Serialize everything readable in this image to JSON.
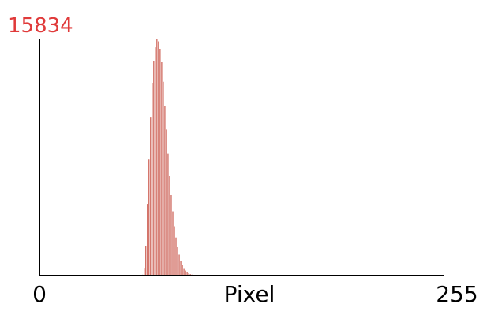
{
  "chart_data": {
    "type": "bar",
    "xlabel": "Pixel",
    "x_tick_labels": [
      "0",
      "255"
    ],
    "xlim": [
      0,
      255
    ],
    "ylim": [
      0,
      15834
    ],
    "y_max_label": "15834",
    "grid": false,
    "legend": "none",
    "bar_color": "#c0392b",
    "label_color": "#e03a3a",
    "axis_color": "#000000",
    "series": [
      {
        "x": [
          65,
          66,
          67,
          68,
          69,
          70,
          71,
          72,
          73,
          74,
          75,
          76,
          77,
          78,
          79,
          80,
          81,
          82,
          83,
          84,
          85,
          86,
          87,
          88,
          89,
          90,
          91,
          92,
          93,
          94,
          95,
          96,
          97,
          98,
          99,
          100,
          101,
          102,
          103
        ],
        "values": [
          60,
          520,
          2000,
          4800,
          7800,
          10600,
          12900,
          14400,
          15300,
          15834,
          15700,
          15200,
          14300,
          13000,
          11400,
          9800,
          8200,
          6700,
          5400,
          4300,
          3300,
          2550,
          1900,
          1400,
          1000,
          720,
          500,
          340,
          220,
          150,
          100,
          65,
          40,
          25,
          15,
          9,
          5,
          3,
          1
        ]
      }
    ]
  }
}
